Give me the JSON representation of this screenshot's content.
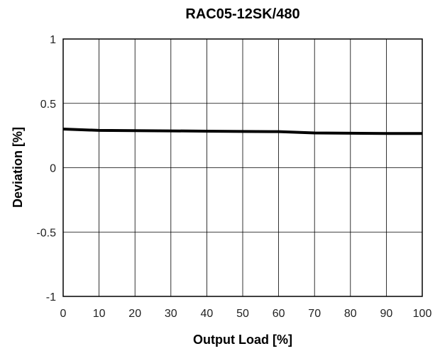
{
  "chart_data": {
    "type": "line",
    "title": "RAC05-12SK/480",
    "xlabel": "Output Load [%]",
    "ylabel": "Deviation [%]",
    "xlim": [
      0,
      100
    ],
    "ylim": [
      -1,
      1
    ],
    "xticks": [
      0,
      10,
      20,
      30,
      40,
      50,
      60,
      70,
      80,
      90,
      100
    ],
    "xtick_labels": [
      "0",
      "10",
      "20",
      "30",
      "40",
      "50",
      "60",
      "70",
      "80",
      "90",
      "100"
    ],
    "yticks": [
      1,
      0.5,
      0,
      -0.5,
      -1
    ],
    "ytick_labels": [
      "1",
      "0.5",
      "0",
      "-0.5",
      "-1"
    ],
    "grid": true,
    "series": [
      {
        "x": [
          0,
          10,
          20,
          30,
          40,
          50,
          60,
          70,
          80,
          90,
          100
        ],
        "values": [
          0.3,
          0.29,
          0.288,
          0.286,
          0.284,
          0.282,
          0.28,
          0.27,
          0.268,
          0.266,
          0.266
        ],
        "color": "#000000"
      }
    ]
  }
}
